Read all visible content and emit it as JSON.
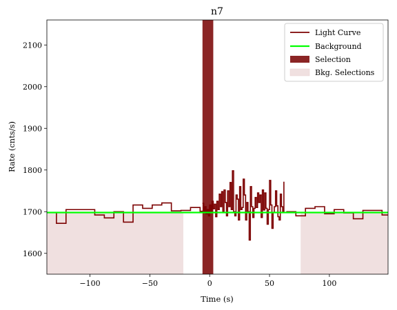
{
  "chart_data": {
    "type": "line",
    "title": "n7",
    "xlabel": "Time (s)",
    "ylabel": "Rate (cnts/s)",
    "xlim": [
      -136,
      149
    ],
    "ylim": [
      1550,
      2160
    ],
    "xticks": [
      -100,
      -50,
      0,
      50,
      100
    ],
    "yticks": [
      1600,
      1700,
      1800,
      1900,
      2000,
      2100
    ],
    "xtick_labels": [
      "−100",
      "−50",
      "0",
      "50",
      "100"
    ],
    "ytick_labels": [
      "1600",
      "1700",
      "1800",
      "1900",
      "2000",
      "2100"
    ],
    "legend_position": "top-right",
    "legend": [
      {
        "label": "Light Curve",
        "kind": "line",
        "color": "#7b0000"
      },
      {
        "label": "Background",
        "kind": "line",
        "color": "#00ff00"
      },
      {
        "label": "Selection",
        "kind": "patch",
        "color": "#8b2525"
      },
      {
        "label": "Bkg. Selections",
        "kind": "patch",
        "color": "#f0e0e0"
      }
    ],
    "background": {
      "name": "Background",
      "value": 1698,
      "color": "#00ff00"
    },
    "bkg_selections": [
      [
        -136,
        -22
      ],
      [
        76,
        149
      ]
    ],
    "selection": [
      -6,
      3
    ],
    "coarse_light_curve": {
      "name": "Light Curve",
      "color": "#7b0000",
      "edges": [
        -136,
        -128,
        -120,
        -104,
        -96,
        -88,
        -80,
        -72,
        -64,
        -56,
        -48,
        -40,
        -32,
        -24,
        -16,
        -8,
        -2,
        3,
        56,
        64,
        72,
        80,
        88,
        96,
        104,
        112,
        120,
        128,
        136,
        144,
        149
      ],
      "values": [
        1698,
        1672,
        1705,
        1705,
        1692,
        1685,
        1700,
        1675,
        1716,
        1708,
        1716,
        1721,
        1702,
        1703,
        1710,
        1701,
        null,
        null,
        null,
        1700,
        1690,
        1708,
        1712,
        1695,
        1705,
        1697,
        1683,
        1703,
        1703,
        1692
      ]
    },
    "fine_light_curve": {
      "name": "Light Curve",
      "color": "#7b0000",
      "edges": [
        -6,
        -5,
        -4,
        -3,
        -2,
        -1,
        0,
        1,
        2,
        3,
        4,
        5,
        6,
        7,
        8,
        9,
        10,
        11,
        12,
        13,
        14,
        15,
        16,
        17,
        18,
        19,
        20,
        21,
        22,
        23,
        24,
        25,
        26,
        27,
        28,
        29,
        30,
        31,
        32,
        33,
        34,
        35,
        36,
        37,
        38,
        39,
        40,
        41,
        42,
        43,
        44,
        45,
        46,
        47,
        48,
        49,
        50,
        51,
        52,
        53,
        54,
        55,
        56,
        57,
        58,
        59,
        60,
        61,
        62
      ],
      "values": [
        1720,
        1702,
        1712,
        1695,
        1705,
        1690,
        1716,
        1698,
        1725,
        1707,
        1718,
        1688,
        1725,
        1705,
        1742,
        1712,
        1748,
        1700,
        1752,
        1722,
        1690,
        1750,
        1712,
        1770,
        1705,
        1798,
        1700,
        1690,
        1740,
        1730,
        1680,
        1760,
        1705,
        1710,
        1778,
        1740,
        1680,
        1722,
        1700,
        1632,
        1760,
        1712,
        1686,
        1708,
        1734,
        1710,
        1745,
        1722,
        1740,
        1686,
        1752,
        1704,
        1745,
        1708,
        1670,
        1705,
        1775,
        1716,
        1660,
        1698,
        1712,
        1750,
        1714,
        1688,
        1680,
        1742,
        1712,
        1700,
        1772
      ]
    }
  }
}
